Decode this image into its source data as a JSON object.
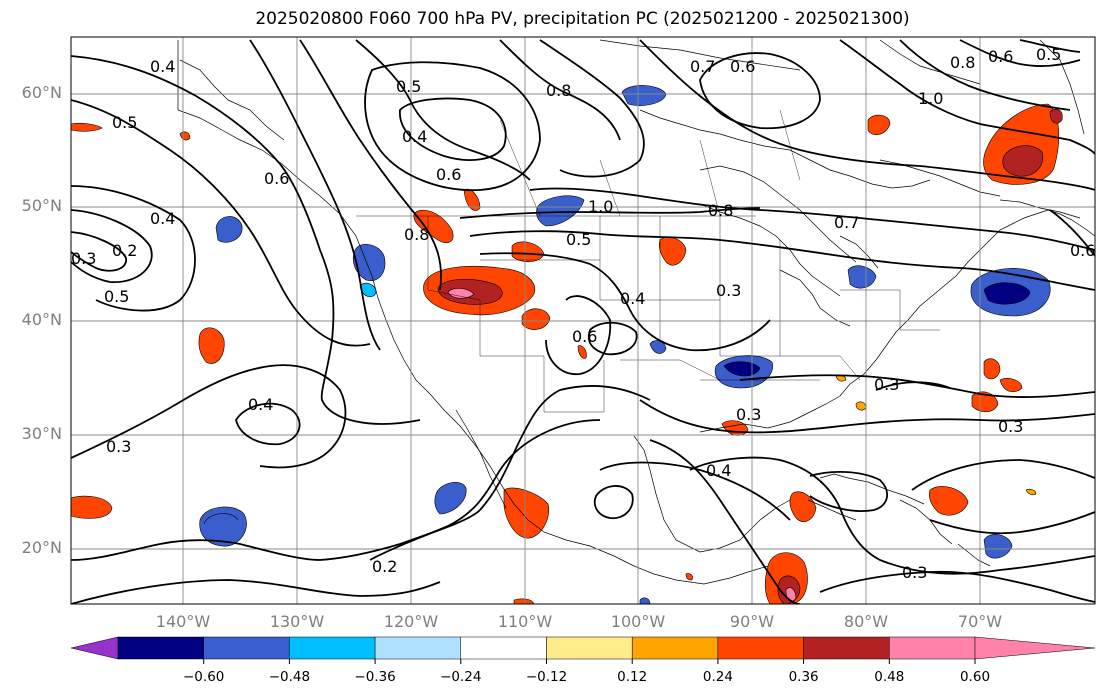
{
  "title": "2025020800 F060 700 hPa PV, precipitation PC (2025021200 - 2025021300)",
  "lat_labels": [
    "60°N",
    "50°N",
    "40°N",
    "30°N",
    "20°N"
  ],
  "lon_labels": [
    "140°W",
    "130°W",
    "120°W",
    "110°W",
    "100°W",
    "90°W",
    "80°W",
    "70°W"
  ],
  "colorbar": {
    "ticks": [
      "−0.60",
      "−0.48",
      "−0.36",
      "−0.24",
      "−0.12",
      "0.12",
      "0.24",
      "0.36",
      "0.48",
      "0.60"
    ],
    "colors": [
      "#9932cc",
      "#000080",
      "#3a5fcd",
      "#00bfff",
      "#b0e2ff",
      "#ffffff",
      "#ffeb8a",
      "#ffa500",
      "#ff4500",
      "#b22222",
      "#ff82ab"
    ]
  },
  "contour_labels": [
    "0.4",
    "0.5",
    "0.5",
    "0.4",
    "0.6",
    "0.8",
    "0.7",
    "0.6",
    "0.8",
    "0.5",
    "1.0",
    "0.6",
    "0.6",
    "0.4",
    "0.2",
    "0.3",
    "0.5",
    "0.8",
    "1.0",
    "0.5",
    "0.8",
    "0.7",
    "0.4",
    "0.6",
    "0.3",
    "0.4",
    "0.3",
    "0.3",
    "0.4",
    "0.3",
    "0.2",
    "0.3",
    "0.3",
    "0.6"
  ],
  "colors": {
    "contour": "#000000",
    "grid": "#888888",
    "axis_label": "#7f7f7f"
  }
}
